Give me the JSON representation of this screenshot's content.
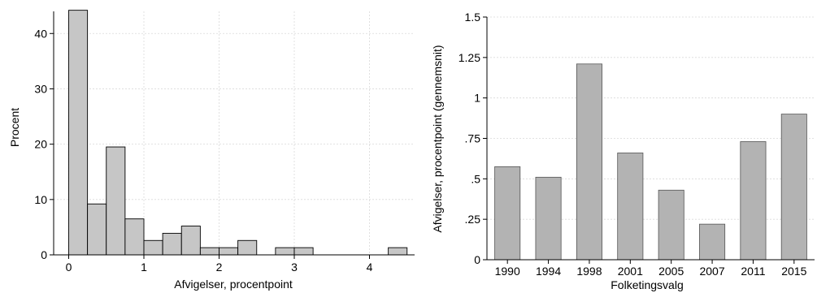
{
  "chart_data": [
    {
      "type": "bar",
      "subtype": "histogram",
      "xlabel": "Afvigelser, procentpoint",
      "ylabel": "Procent",
      "xlim": [
        -0.2,
        4.6
      ],
      "ylim": [
        0,
        44
      ],
      "x_ticks": [
        "0",
        "1",
        "2",
        "3",
        "4"
      ],
      "y_ticks": [
        "0",
        "10",
        "20",
        "30",
        "40"
      ],
      "grid": true,
      "bin_width": 0.25,
      "bins": [
        {
          "start": 0.0,
          "end": 0.25,
          "value": 44.2
        },
        {
          "start": 0.25,
          "end": 0.5,
          "value": 9.2
        },
        {
          "start": 0.5,
          "end": 0.75,
          "value": 19.5
        },
        {
          "start": 0.75,
          "end": 1.0,
          "value": 6.5
        },
        {
          "start": 1.0,
          "end": 1.25,
          "value": 2.6
        },
        {
          "start": 1.25,
          "end": 1.5,
          "value": 3.9
        },
        {
          "start": 1.5,
          "end": 1.75,
          "value": 5.2
        },
        {
          "start": 1.75,
          "end": 2.0,
          "value": 1.3
        },
        {
          "start": 2.0,
          "end": 2.25,
          "value": 1.3
        },
        {
          "start": 2.25,
          "end": 2.5,
          "value": 2.6
        },
        {
          "start": 2.75,
          "end": 3.0,
          "value": 1.3
        },
        {
          "start": 3.0,
          "end": 3.25,
          "value": 1.3
        },
        {
          "start": 4.25,
          "end": 4.5,
          "value": 1.3
        }
      ]
    },
    {
      "type": "bar",
      "xlabel": "Folketingsvalg",
      "ylabel": "Afvigelser, procentpoint (gennemsnit)",
      "ylim": [
        0,
        1.5
      ],
      "y_ticks": [
        "0",
        ".25",
        ".5",
        ".75",
        "1",
        "1.25",
        "1.5"
      ],
      "grid": true,
      "categories": [
        "1990",
        "1994",
        "1998",
        "2001",
        "2005",
        "2007",
        "2011",
        "2015"
      ],
      "values": [
        0.575,
        0.51,
        1.21,
        0.66,
        0.43,
        0.22,
        0.73,
        0.9
      ]
    }
  ]
}
